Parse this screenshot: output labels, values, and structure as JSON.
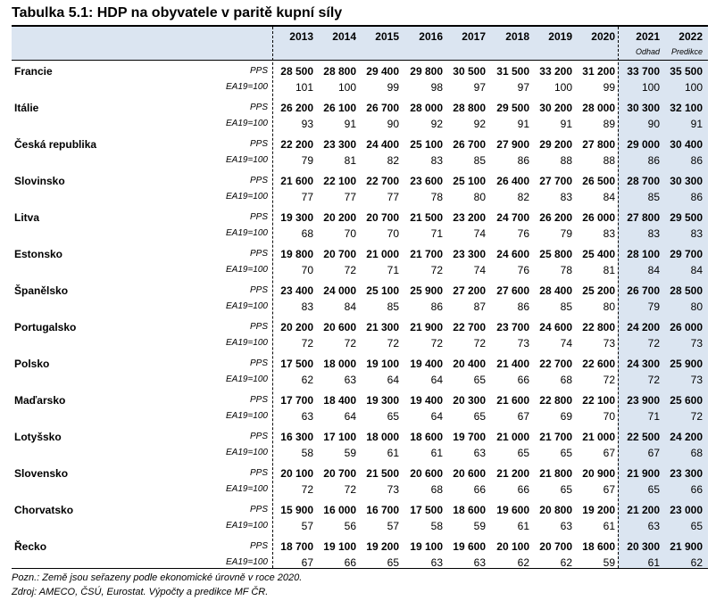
{
  "title": "Tabulka 5.1: HDP na obyvatele v paritě kupní síly",
  "years": [
    "2013",
    "2014",
    "2015",
    "2016",
    "2017",
    "2018",
    "2019",
    "2020",
    "2021",
    "2022"
  ],
  "year_notes": {
    "2021": "Odhad",
    "2022": "Predikce"
  },
  "unit_labels": {
    "pps": "PPS",
    "index": "EA19=100"
  },
  "rows": [
    {
      "country": "Francie",
      "pps": [
        "28 500",
        "28 800",
        "29 400",
        "29 800",
        "30 500",
        "31 500",
        "33 200",
        "31 200",
        "33 700",
        "35 500"
      ],
      "index": [
        "101",
        "100",
        "99",
        "98",
        "97",
        "97",
        "100",
        "99",
        "100",
        "100"
      ]
    },
    {
      "country": "Itálie",
      "pps": [
        "26 200",
        "26 100",
        "26 700",
        "28 000",
        "28 800",
        "29 500",
        "30 200",
        "28 000",
        "30 300",
        "32 100"
      ],
      "index": [
        "93",
        "91",
        "90",
        "92",
        "92",
        "91",
        "91",
        "89",
        "90",
        "91"
      ]
    },
    {
      "country": "Česká republika",
      "pps": [
        "22 200",
        "23 300",
        "24 400",
        "25 100",
        "26 700",
        "27 900",
        "29 200",
        "27 800",
        "29 000",
        "30 400"
      ],
      "index": [
        "79",
        "81",
        "82",
        "83",
        "85",
        "86",
        "88",
        "88",
        "86",
        "86"
      ]
    },
    {
      "country": "Slovinsko",
      "pps": [
        "21 600",
        "22 100",
        "22 700",
        "23 600",
        "25 100",
        "26 400",
        "27 700",
        "26 500",
        "28 700",
        "30 300"
      ],
      "index": [
        "77",
        "77",
        "77",
        "78",
        "80",
        "82",
        "83",
        "84",
        "85",
        "86"
      ]
    },
    {
      "country": "Litva",
      "pps": [
        "19 300",
        "20 200",
        "20 700",
        "21 500",
        "23 200",
        "24 700",
        "26 200",
        "26 000",
        "27 800",
        "29 500"
      ],
      "index": [
        "68",
        "70",
        "70",
        "71",
        "74",
        "76",
        "79",
        "83",
        "83",
        "83"
      ]
    },
    {
      "country": "Estonsko",
      "pps": [
        "19 800",
        "20 700",
        "21 000",
        "21 700",
        "23 300",
        "24 600",
        "25 800",
        "25 400",
        "28 100",
        "29 700"
      ],
      "index": [
        "70",
        "72",
        "71",
        "72",
        "74",
        "76",
        "78",
        "81",
        "84",
        "84"
      ]
    },
    {
      "country": "Španělsko",
      "pps": [
        "23 400",
        "24 000",
        "25 100",
        "25 900",
        "27 200",
        "27 600",
        "28 400",
        "25 200",
        "26 700",
        "28 500"
      ],
      "index": [
        "83",
        "84",
        "85",
        "86",
        "87",
        "86",
        "85",
        "80",
        "79",
        "80"
      ]
    },
    {
      "country": "Portugalsko",
      "pps": [
        "20 200",
        "20 600",
        "21 300",
        "21 900",
        "22 700",
        "23 700",
        "24 600",
        "22 800",
        "24 200",
        "26 000"
      ],
      "index": [
        "72",
        "72",
        "72",
        "72",
        "72",
        "73",
        "74",
        "73",
        "72",
        "73"
      ]
    },
    {
      "country": "Polsko",
      "pps": [
        "17 500",
        "18 000",
        "19 100",
        "19 400",
        "20 400",
        "21 400",
        "22 700",
        "22 600",
        "24 300",
        "25 900"
      ],
      "index": [
        "62",
        "63",
        "64",
        "64",
        "65",
        "66",
        "68",
        "72",
        "72",
        "73"
      ]
    },
    {
      "country": "Maďarsko",
      "pps": [
        "17 700",
        "18 400",
        "19 300",
        "19 400",
        "20 300",
        "21 600",
        "22 800",
        "22 100",
        "23 900",
        "25 600"
      ],
      "index": [
        "63",
        "64",
        "65",
        "64",
        "65",
        "67",
        "69",
        "70",
        "71",
        "72"
      ]
    },
    {
      "country": "Lotyšsko",
      "pps": [
        "16 300",
        "17 100",
        "18 000",
        "18 600",
        "19 700",
        "21 000",
        "21 700",
        "21 000",
        "22 500",
        "24 200"
      ],
      "index": [
        "58",
        "59",
        "61",
        "61",
        "63",
        "65",
        "65",
        "67",
        "67",
        "68"
      ]
    },
    {
      "country": "Slovensko",
      "pps": [
        "20 100",
        "20 700",
        "21 500",
        "20 600",
        "20 600",
        "21 200",
        "21 800",
        "20 900",
        "21 900",
        "23 300"
      ],
      "index": [
        "72",
        "72",
        "73",
        "68",
        "66",
        "66",
        "65",
        "67",
        "65",
        "66"
      ]
    },
    {
      "country": "Chorvatsko",
      "pps": [
        "15 900",
        "16 000",
        "16 700",
        "17 500",
        "18 600",
        "19 600",
        "20 800",
        "19 200",
        "21 200",
        "23 000"
      ],
      "index": [
        "57",
        "56",
        "57",
        "58",
        "59",
        "61",
        "63",
        "61",
        "63",
        "65"
      ]
    },
    {
      "country": "Řecko",
      "pps": [
        "18 700",
        "19 100",
        "19 200",
        "19 100",
        "19 600",
        "20 100",
        "20 700",
        "18 600",
        "20 300",
        "21 900"
      ],
      "index": [
        "67",
        "66",
        "65",
        "63",
        "63",
        "62",
        "62",
        "59",
        "61",
        "62"
      ]
    }
  ],
  "footnotes": [
    "Pozn.: Země jsou seřazeny podle ekonomické úrovně v roce 2020.",
    "Zdroj: AMECO, ČSÚ, Eurostat. Výpočty a predikce MF ČR."
  ]
}
